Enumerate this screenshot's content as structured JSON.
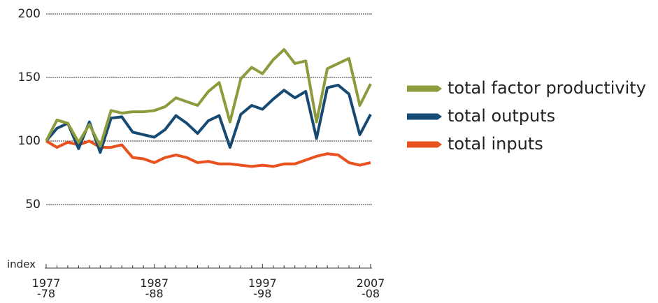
{
  "chart_data": {
    "type": "line",
    "y_label": "index",
    "categories": [
      "1977\n-78",
      null,
      null,
      null,
      null,
      null,
      null,
      null,
      null,
      null,
      "1987\n-88",
      null,
      null,
      null,
      null,
      null,
      null,
      null,
      null,
      null,
      "1997\n-98",
      null,
      null,
      null,
      null,
      null,
      null,
      null,
      null,
      null,
      "2007\n-08"
    ],
    "series": [
      {
        "name": "total factor productivity",
        "color": "#8c9b3c",
        "values": [
          100,
          116.5,
          114,
          99,
          113,
          96,
          124,
          122,
          123,
          123,
          124,
          127,
          134,
          131,
          128,
          139,
          146,
          115,
          149,
          158,
          153,
          164,
          172,
          161,
          163,
          115,
          157,
          161,
          165,
          128,
          145
        ]
      },
      {
        "name": "total outputs",
        "color": "#174a72",
        "values": [
          100,
          110,
          114,
          94,
          115,
          91,
          118,
          119,
          107,
          105,
          103,
          109,
          120,
          114,
          106,
          116,
          120,
          95,
          121,
          128,
          125,
          133,
          140,
          134,
          139,
          102,
          142,
          144,
          137,
          105,
          121
        ]
      },
      {
        "name": "total inputs",
        "color": "#e8521f",
        "values": [
          100,
          95,
          99,
          97,
          100,
          95,
          95,
          97,
          87,
          86,
          83,
          87,
          89,
          87,
          83,
          84,
          82,
          82,
          81,
          80,
          81,
          80,
          82,
          82,
          85,
          88,
          90,
          89,
          83,
          81,
          83
        ]
      }
    ],
    "ylim": [
      0,
      200
    ],
    "yticks": [
      50,
      100,
      150,
      200
    ],
    "grid": true,
    "legend": "right"
  }
}
